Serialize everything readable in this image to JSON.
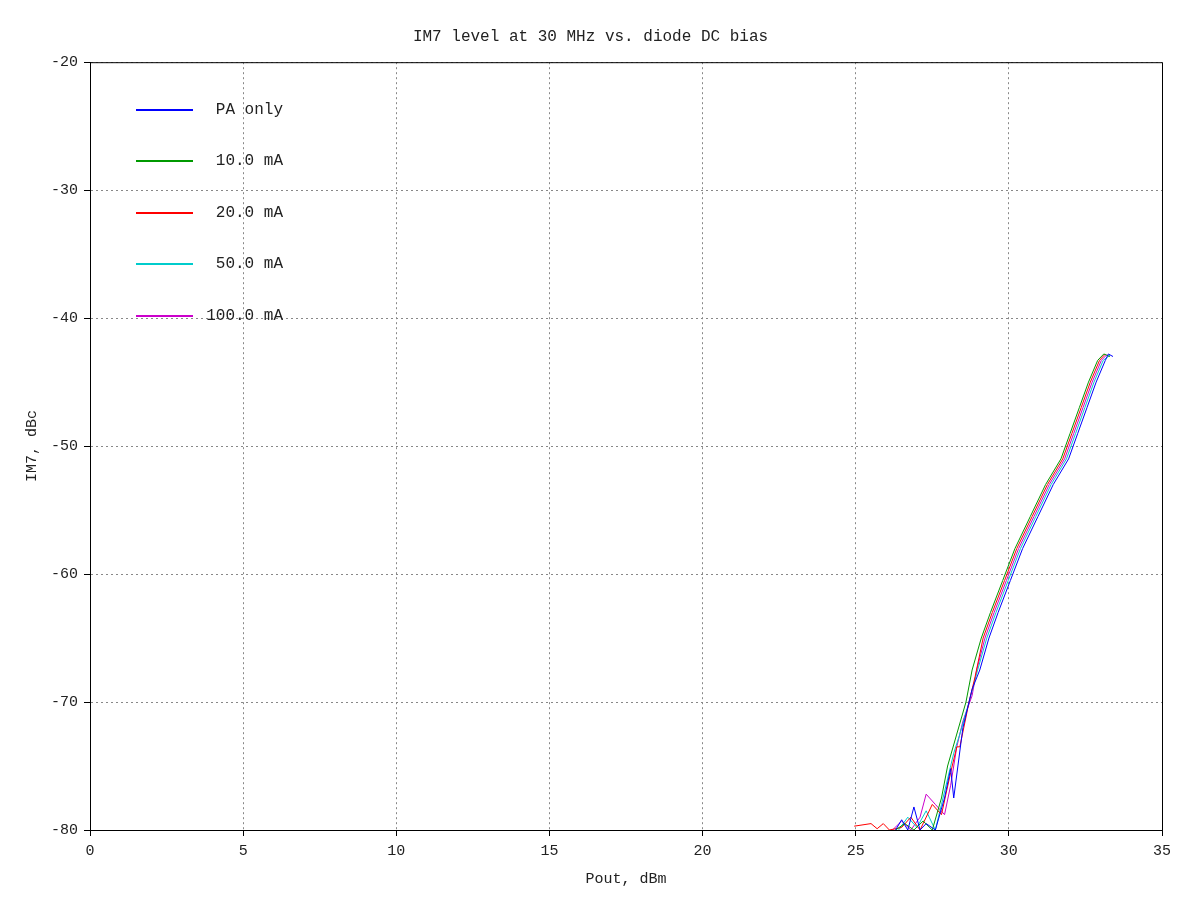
{
  "chart_data": {
    "type": "line",
    "title": "IM7 level at 30 MHz vs. diode DC bias",
    "xlabel": "Pout, dBm",
    "ylabel": "IM7, dBc",
    "xlim": [
      0,
      35
    ],
    "xticks": [
      0,
      5,
      10,
      15,
      20,
      25,
      30,
      35
    ],
    "ylim": [
      -80,
      -20
    ],
    "yticks": [
      -80,
      -70,
      -60,
      -50,
      -40,
      -30,
      -20
    ],
    "grid": true,
    "legend": "top left",
    "marker": "none",
    "line_style": "solid",
    "series": [
      {
        "name": "PA only",
        "color": "#0000ff",
        "x": [
          26.3,
          26.5,
          26.7,
          26.9,
          27.1,
          27.3,
          27.6,
          27.9,
          28.1,
          28.2,
          28.5,
          28.8,
          29.05,
          29.35,
          29.65,
          30.05,
          30.45,
          30.95,
          31.45,
          31.95,
          32.25,
          32.55,
          32.85,
          33.15,
          33.25,
          33.4
        ],
        "values": [
          -80,
          -79.2,
          -80,
          -78.2,
          -80,
          -79.5,
          -80,
          -77.5,
          -75.2,
          -77.5,
          -72,
          -69,
          -67.5,
          -65,
          -63,
          -60.5,
          -58,
          -55.5,
          -53,
          -51,
          -49,
          -47,
          -45,
          -43.3,
          -42.8,
          -43.0
        ]
      },
      {
        "name": "10.0 mA",
        "color": "#009900",
        "x": [
          26.3,
          26.6,
          26.9,
          27.2,
          27.5,
          27.8,
          28.0,
          28.3,
          28.6,
          28.8,
          29.1,
          29.4,
          29.8,
          30.2,
          30.7,
          31.2,
          31.7,
          32.0,
          32.3,
          32.6,
          32.9,
          33.1,
          33.3
        ],
        "values": [
          -80,
          -79.5,
          -80,
          -79.3,
          -80,
          -77.5,
          -75,
          -72.5,
          -70,
          -67.5,
          -65,
          -63,
          -60.5,
          -58,
          -55.5,
          -53,
          -51,
          -49,
          -47,
          -45,
          -43.3,
          -42.8,
          -43.0
        ]
      },
      {
        "name": "20.0 mA",
        "color": "#ff0000",
        "x": [
          24.95,
          25.5,
          25.7,
          25.9,
          26.1,
          26.5,
          26.8,
          27.1,
          27.5,
          27.8,
          28.1,
          28.3,
          28.4,
          28.7,
          28.9,
          29.16,
          29.46,
          29.86,
          30.26,
          30.76,
          31.26,
          31.76,
          32.06,
          32.36,
          32.66,
          32.96,
          33.15
        ],
        "values": [
          -79.7,
          -79.5,
          -79.9,
          -79.5,
          -80,
          -79.8,
          -79.0,
          -80,
          -78.0,
          -78.8,
          -75.5,
          -73.5,
          -73.5,
          -70,
          -68,
          -65,
          -63,
          -60.5,
          -58,
          -55.5,
          -53,
          -51,
          -49,
          -47,
          -45,
          -43.3,
          -42.8
        ]
      },
      {
        "name": "50.0 mA",
        "color": "#00cccc",
        "x": [
          26.4,
          26.7,
          27.0,
          27.3,
          27.6,
          27.8,
          28.0,
          28.2,
          28.4,
          28.7,
          28.98,
          29.28,
          29.58,
          29.98,
          30.38,
          30.88,
          31.38,
          31.88,
          32.18,
          32.48,
          32.78,
          33.08,
          33.3
        ],
        "values": [
          -80,
          -79,
          -79.8,
          -78.5,
          -80,
          -78.0,
          -76,
          -74,
          -72.5,
          -70,
          -67.5,
          -65,
          -63,
          -60.5,
          -58,
          -55.5,
          -53,
          -51,
          -49,
          -47,
          -45,
          -43.3,
          -42.9
        ]
      },
      {
        "name": "100.0 mA",
        "color": "#cc00cc",
        "x": [
          26.2,
          26.5,
          26.8,
          27.1,
          27.3,
          27.6,
          27.9,
          28.1,
          28.3,
          28.5,
          28.8,
          28.95,
          29.22,
          29.52,
          29.92,
          30.32,
          30.82,
          31.32,
          31.82,
          32.12,
          32.42,
          32.72,
          33.02,
          33.2
        ],
        "values": [
          -80,
          -79.3,
          -80,
          -79.0,
          -77.2,
          -78.0,
          -78.8,
          -76.5,
          -73.5,
          -71.5,
          -69.5,
          -67.5,
          -65,
          -63,
          -60.5,
          -58,
          -55.5,
          -53,
          -51,
          -49,
          -47,
          -45,
          -43.3,
          -42.85
        ]
      }
    ]
  }
}
